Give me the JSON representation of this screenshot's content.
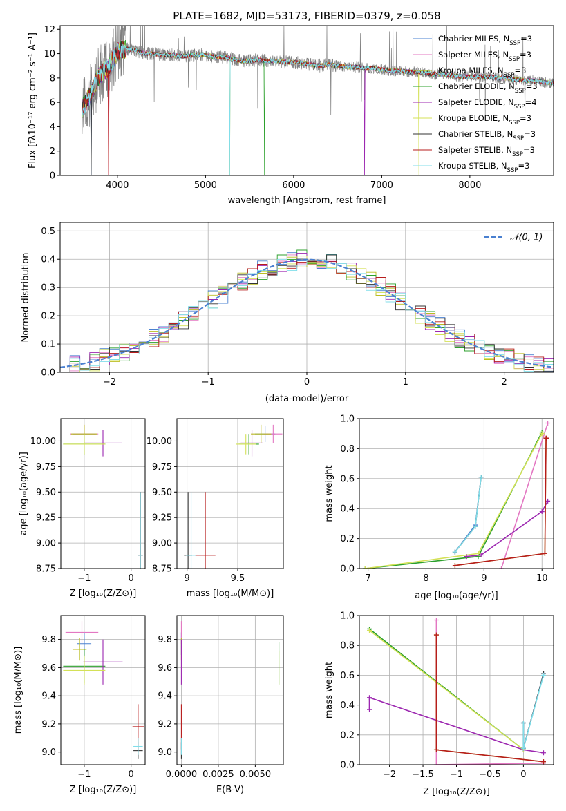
{
  "colors": {
    "Chabrier MILES": "#4a80d0",
    "Salpeter MILES": "#e377c2",
    "Kroupa MILES": "#bcbd22",
    "Chabrier ELODIE": "#2ca02c",
    "Salpeter ELODIE": "#9c27b0",
    "Kroupa ELODIE": "#d4e157",
    "Chabrier STELIB": "#333333",
    "Salpeter STELIB": "#b71c1c",
    "Kroupa STELIB": "#80deea",
    "data": "#808080",
    "gauss": "#4a80d0"
  },
  "chart_data": [
    {
      "id": "spectrum",
      "type": "line",
      "title": "PLATE=1682, MJD=53173, FIBERID=0379, z=0.058",
      "xlabel": "wavelength [Angstrom, rest frame]",
      "ylabel": "Flux [fλ10⁻¹⁷ erg cm⁻² s⁻¹ A⁻¹]",
      "xlim": [
        3350,
        8950
      ],
      "ylim": [
        0,
        12.3
      ],
      "xticks": [
        4000,
        5000,
        6000,
        7000,
        8000
      ],
      "yticks": [
        0,
        2,
        4,
        6,
        8,
        10,
        12
      ],
      "grid": false,
      "legend_position": "top-right",
      "legend": [
        {
          "name": "Chabrier MILES",
          "suffix": "3"
        },
        {
          "name": "Salpeter MILES",
          "suffix": "3"
        },
        {
          "name": "Kroupa MILES",
          "suffix": "3"
        },
        {
          "name": "Chabrier ELODIE",
          "suffix": "3"
        },
        {
          "name": "Salpeter ELODIE",
          "suffix": "4"
        },
        {
          "name": "Kroupa ELODIE",
          "suffix": "3"
        },
        {
          "name": "Chabrier STELIB",
          "suffix": "3"
        },
        {
          "name": "Salpeter STELIB",
          "suffix": "3"
        },
        {
          "name": "Kroupa STELIB",
          "suffix": "3"
        }
      ],
      "envelope": {
        "x": [
          3600,
          3700,
          3800,
          3900,
          4000,
          4100,
          4200,
          4300,
          4400,
          4500,
          4600,
          4700,
          4800,
          4900,
          5000,
          5100,
          5200,
          5300,
          5400,
          5500,
          5600,
          5700,
          5800,
          5900,
          6000,
          6100,
          6200,
          6300,
          6400,
          6500,
          6600,
          6700,
          6800,
          6900,
          7000,
          7100,
          7200,
          7300,
          7400,
          7500,
          7600,
          7700,
          7800,
          7900,
          8000,
          8100,
          8200,
          8300,
          8400,
          8500,
          8600,
          8700,
          8800,
          8900
        ],
        "y": [
          5.5,
          6.7,
          8.3,
          8.8,
          10.2,
          10.4,
          10.3,
          10.0,
          10.0,
          9.9,
          9.9,
          9.8,
          9.8,
          9.9,
          9.9,
          9.7,
          9.7,
          9.6,
          9.4,
          9.4,
          9.5,
          9.4,
          9.4,
          9.3,
          9.3,
          9.2,
          9.1,
          9.0,
          9.1,
          9.0,
          8.9,
          8.9,
          8.8,
          8.8,
          8.7,
          8.6,
          8.6,
          8.5,
          8.5,
          8.4,
          8.3,
          8.3,
          8.2,
          8.1,
          8.1,
          8.1,
          8.1,
          8.0,
          8.0,
          7.9,
          7.8,
          7.8,
          7.7,
          7.6
        ]
      }
    },
    {
      "id": "residuals",
      "type": "histogram",
      "xlabel": "(data-model)/error",
      "ylabel": "Normed distribution",
      "xlim": [
        -2.5,
        2.5
      ],
      "ylim": [
        0,
        0.53
      ],
      "xticks": [
        -2,
        -1,
        0,
        1,
        2
      ],
      "yticks": [
        0.0,
        0.1,
        0.2,
        0.3,
        0.4,
        0.5
      ],
      "grid": true,
      "legend_position": "top-right",
      "legend": "𝒩(0, 1)",
      "gauss_mean": 0,
      "gauss_sigma": 1,
      "bin_width": 0.1
    },
    {
      "id": "age-vs-Z",
      "type": "errorbar",
      "xlabel": "Z [log₁₀(Z/Z⊙)]",
      "ylabel": "age  [log₁₀(age/yr)]",
      "xlim": [
        -1.5,
        0.3
      ],
      "ylim": [
        8.75,
        10.22
      ],
      "xticks": [
        -1,
        0
      ],
      "yticks": [
        8.75,
        9.0,
        9.25,
        9.5,
        9.75,
        10.0
      ],
      "grid": true,
      "points": [
        {
          "model": "Chabrier MILES",
          "x": -1.0,
          "y": 10.07,
          "xerr": 0.25,
          "yerr": 0.08
        },
        {
          "model": "Salpeter MILES",
          "x": -1.0,
          "y": 10.07,
          "xerr": 0.3,
          "yerr": 0.09
        },
        {
          "model": "Kroupa MILES",
          "x": -1.0,
          "y": 10.07,
          "xerr": 0.28,
          "yerr": 0.09
        },
        {
          "model": "Chabrier ELODIE",
          "x": -1.0,
          "y": 9.97,
          "xerr": 0.45,
          "yerr": 0.1
        },
        {
          "model": "Salpeter ELODIE",
          "x": -0.6,
          "y": 9.98,
          "xerr": 0.4,
          "yerr": 0.13
        },
        {
          "model": "Kroupa ELODIE",
          "x": -1.0,
          "y": 9.97,
          "xerr": 0.45,
          "yerr": 0.1
        },
        {
          "model": "Chabrier STELIB",
          "x": 0.2,
          "y": 8.88,
          "xerr": 0.05,
          "yerr": 0.62
        },
        {
          "model": "Salpeter STELIB",
          "x": 0.2,
          "y": 8.88,
          "xerr": 0.05,
          "yerr": 0.62
        },
        {
          "model": "Kroupa STELIB",
          "x": 0.2,
          "y": 8.88,
          "xerr": 0.05,
          "yerr": 0.62
        }
      ]
    },
    {
      "id": "age-vs-mass",
      "type": "errorbar",
      "xlabel": "mass [log₁₀(M/M⊙)]",
      "ylabel": "",
      "xlim": [
        8.9,
        9.95
      ],
      "ylim": [
        8.75,
        10.22
      ],
      "xticks": [
        9.0,
        9.5
      ],
      "yticks": [
        8.75,
        9.0,
        9.25,
        9.5,
        9.75,
        10.0
      ],
      "grid": true,
      "points": [
        {
          "model": "Chabrier MILES",
          "x": 9.77,
          "y": 10.07,
          "xerr": 0.1,
          "yerr": 0.08
        },
        {
          "model": "Salpeter MILES",
          "x": 9.85,
          "y": 10.07,
          "xerr": 0.09,
          "yerr": 0.09
        },
        {
          "model": "Kroupa MILES",
          "x": 9.73,
          "y": 10.07,
          "xerr": 0.1,
          "yerr": 0.09
        },
        {
          "model": "Chabrier ELODIE",
          "x": 9.61,
          "y": 9.97,
          "xerr": 0.1,
          "yerr": 0.1
        },
        {
          "model": "Salpeter ELODIE",
          "x": 9.64,
          "y": 9.98,
          "xerr": 0.11,
          "yerr": 0.13
        },
        {
          "model": "Kroupa ELODIE",
          "x": 9.58,
          "y": 9.97,
          "xerr": 0.1,
          "yerr": 0.1
        },
        {
          "model": "Chabrier STELIB",
          "x": 9.01,
          "y": 8.88,
          "xerr": 0.04,
          "yerr": 0.62
        },
        {
          "model": "Salpeter STELIB",
          "x": 9.18,
          "y": 8.88,
          "xerr": 0.1,
          "yerr": 0.62
        },
        {
          "model": "Kroupa STELIB",
          "x": 9.04,
          "y": 8.88,
          "xerr": 0.05,
          "yerr": 0.62
        }
      ]
    },
    {
      "id": "weight-vs-age",
      "type": "line",
      "xlabel": "age  [log₁₀(age/yr)]",
      "ylabel": "mass weight",
      "xlim": [
        6.85,
        10.2
      ],
      "ylim": [
        0,
        1.0
      ],
      "xticks": [
        7,
        8,
        9,
        10
      ],
      "yticks": [
        0.0,
        0.2,
        0.4,
        0.6,
        0.8,
        1.0
      ],
      "grid": true,
      "series": [
        {
          "model": "Chabrier MILES",
          "x": [
            8.5,
            8.85,
            8.95
          ],
          "y": [
            0.11,
            0.29,
            0.61
          ]
        },
        {
          "model": "Salpeter MILES",
          "x": [
            9.3,
            10.1
          ],
          "y": [
            0.0,
            0.97
          ]
        },
        {
          "model": "Kroupa MILES",
          "x": [
            8.5,
            10.05,
            10.07,
            10.08
          ],
          "y": [
            0.02,
            0.1,
            0.87,
            0.87
          ]
        },
        {
          "model": "Chabrier ELODIE",
          "x": [
            6.95,
            8.9,
            10.0
          ],
          "y": [
            0.0,
            0.08,
            0.91
          ]
        },
        {
          "model": "Salpeter ELODIE",
          "x": [
            8.7,
            8.95,
            10.0,
            10.1
          ],
          "y": [
            0.08,
            0.09,
            0.38,
            0.45
          ]
        },
        {
          "model": "Kroupa ELODIE",
          "x": [
            6.95,
            8.9,
            10.0
          ],
          "y": [
            0.0,
            0.1,
            0.9
          ]
        },
        {
          "model": "Chabrier STELIB",
          "x": [
            8.5,
            8.85,
            8.95
          ],
          "y": [
            0.11,
            0.28,
            0.61
          ]
        },
        {
          "model": "Salpeter STELIB",
          "x": [
            8.5,
            10.05,
            10.07,
            10.08
          ],
          "y": [
            0.02,
            0.1,
            0.87,
            0.87
          ]
        },
        {
          "model": "Kroupa STELIB",
          "x": [
            8.5,
            8.85,
            8.95
          ],
          "y": [
            0.11,
            0.28,
            0.61
          ]
        }
      ]
    },
    {
      "id": "mass-vs-Z",
      "type": "errorbar",
      "xlabel": "Z [log₁₀(Z/Z⊙)]",
      "ylabel": "mass [log₁₀(M/M⊙)]",
      "xlim": [
        -1.5,
        0.3
      ],
      "ylim": [
        8.91,
        9.97
      ],
      "xticks": [
        -1,
        0
      ],
      "yticks": [
        9.0,
        9.2,
        9.4,
        9.6,
        9.8
      ],
      "grid": true,
      "points": [
        {
          "model": "Chabrier MILES",
          "x": -1.0,
          "y": 9.77,
          "xerr": 0.15,
          "yerr": 0.08
        },
        {
          "model": "Salpeter MILES",
          "x": -1.05,
          "y": 9.85,
          "xerr": 0.35,
          "yerr": 0.08
        },
        {
          "model": "Kroupa MILES",
          "x": -1.1,
          "y": 9.73,
          "xerr": 0.15,
          "yerr": 0.08
        },
        {
          "model": "Chabrier ELODIE",
          "x": -1.0,
          "y": 9.61,
          "xerr": 0.45,
          "yerr": 0.12
        },
        {
          "model": "Salpeter ELODIE",
          "x": -0.6,
          "y": 9.64,
          "xerr": 0.42,
          "yerr": 0.16
        },
        {
          "model": "Kroupa ELODIE",
          "x": -1.0,
          "y": 9.58,
          "xerr": 0.45,
          "yerr": 0.1
        },
        {
          "model": "Chabrier STELIB",
          "x": 0.15,
          "y": 9.01,
          "xerr": 0.1,
          "yerr": 0.06
        },
        {
          "model": "Salpeter STELIB",
          "x": 0.15,
          "y": 9.18,
          "xerr": 0.12,
          "yerr": 0.16
        },
        {
          "model": "Kroupa STELIB",
          "x": 0.15,
          "y": 9.04,
          "xerr": 0.1,
          "yerr": 0.06
        }
      ]
    },
    {
      "id": "mass-vs-EBV",
      "type": "errorbar",
      "xlabel": "E(B-V)",
      "ylabel": "",
      "xlim": [
        -0.0003,
        0.0069
      ],
      "ylim": [
        8.91,
        9.97
      ],
      "xticks": [
        0.0,
        0.0025,
        0.005
      ],
      "xticklabels": [
        "0.0000",
        "0.0025",
        "0.0050"
      ],
      "yticks": [
        9.0,
        9.2,
        9.4,
        9.6,
        9.8
      ],
      "grid": true,
      "points": [
        {
          "model": "Chabrier MILES",
          "x": 0.0,
          "y": 9.77,
          "xerr": 0.0,
          "yerr": 0.08
        },
        {
          "model": "Salpeter MILES",
          "x": 0.0,
          "y": 9.85,
          "xerr": 0.0,
          "yerr": 0.08
        },
        {
          "model": "Kroupa MILES",
          "x": 0.0,
          "y": 9.73,
          "xerr": 0.0,
          "yerr": 0.08
        },
        {
          "model": "Chabrier ELODIE",
          "x": 0.0066,
          "y": 9.63,
          "xerr": 0.0,
          "yerr": 0.15
        },
        {
          "model": "Salpeter ELODIE",
          "x": 0.0,
          "y": 9.64,
          "xerr": 0.0,
          "yerr": 0.16
        },
        {
          "model": "Kroupa ELODIE",
          "x": 0.0066,
          "y": 9.6,
          "xerr": 0.0,
          "yerr": 0.12
        },
        {
          "model": "Chabrier STELIB",
          "x": 0.0,
          "y": 9.01,
          "xerr": 0.0,
          "yerr": 0.06
        },
        {
          "model": "Salpeter STELIB",
          "x": 0.0,
          "y": 9.18,
          "xerr": 0.0,
          "yerr": 0.16
        },
        {
          "model": "Kroupa STELIB",
          "x": 0.0,
          "y": 9.04,
          "xerr": 0.0,
          "yerr": 0.06
        }
      ]
    },
    {
      "id": "weight-vs-Z",
      "type": "line",
      "xlabel": "Z [log₁₀(Z/Z⊙)]",
      "ylabel": "mass weight",
      "xlim": [
        -2.45,
        0.45
      ],
      "ylim": [
        0,
        1.0
      ],
      "xticks": [
        -2.0,
        -1.5,
        -1.0,
        -0.5,
        0.0
      ],
      "yticks": [
        0.0,
        0.2,
        0.4,
        0.6,
        0.8,
        1.0
      ],
      "grid": true,
      "series": [
        {
          "model": "Chabrier MILES",
          "x": [
            0.0,
            0.0,
            0.3
          ],
          "y": [
            0.28,
            0.11,
            0.61
          ]
        },
        {
          "model": "Salpeter MILES",
          "x": [
            -1.3,
            -1.3,
            0.3
          ],
          "y": [
            0.97,
            0.0,
            0.01
          ]
        },
        {
          "model": "Kroupa MILES",
          "x": [
            0.3,
            -1.3,
            -1.3
          ],
          "y": [
            0.02,
            0.1,
            0.87
          ]
        },
        {
          "model": "Chabrier ELODIE",
          "x": [
            -2.3,
            0.0
          ],
          "y": [
            0.91,
            0.1
          ]
        },
        {
          "model": "Salpeter ELODIE",
          "x": [
            -2.3,
            -2.3,
            0.0,
            0.3
          ],
          "y": [
            0.37,
            0.45,
            0.1,
            0.08
          ]
        },
        {
          "model": "Kroupa ELODIE",
          "x": [
            -2.3,
            0.0
          ],
          "y": [
            0.9,
            0.1
          ]
        },
        {
          "model": "Chabrier STELIB",
          "x": [
            0.0,
            0.0,
            0.3
          ],
          "y": [
            0.28,
            0.11,
            0.61
          ]
        },
        {
          "model": "Salpeter STELIB",
          "x": [
            0.3,
            -1.3,
            -1.3
          ],
          "y": [
            0.02,
            0.1,
            0.87
          ]
        },
        {
          "model": "Kroupa STELIB",
          "x": [
            0.0,
            0.0,
            0.3
          ],
          "y": [
            0.28,
            0.11,
            0.6
          ]
        }
      ]
    }
  ]
}
